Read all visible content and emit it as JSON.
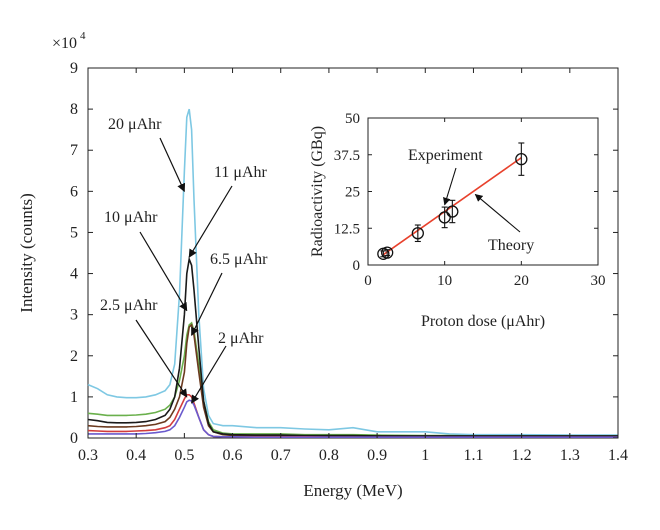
{
  "chart_data": [
    {
      "type": "line",
      "xlabel": "Energy (MeV)",
      "ylabel": "Intensity (counts)",
      "y_multiplier": "×10",
      "y_multiplier_exp": "4",
      "xlim": [
        0.3,
        1.4
      ],
      "ylim": [
        0,
        9
      ],
      "xticks": [
        0.3,
        0.4,
        0.5,
        0.6,
        0.7,
        0.8,
        0.9,
        1,
        1.1,
        1.2,
        1.3,
        1.4
      ],
      "yticks": [
        0,
        1,
        2,
        3,
        4,
        5,
        6,
        7,
        8,
        9
      ],
      "grid": false,
      "series": [
        {
          "color": "#7ec8e3",
          "x": [
            0.3,
            0.32,
            0.34,
            0.36,
            0.38,
            0.4,
            0.42,
            0.44,
            0.46,
            0.47,
            0.48,
            0.49,
            0.5,
            0.505,
            0.51,
            0.515,
            0.52,
            0.53,
            0.54,
            0.55,
            0.56,
            0.58,
            0.6,
            0.65,
            0.7,
            0.75,
            0.8,
            0.85,
            0.9,
            1.0,
            1.05,
            1.1,
            1.2,
            1.3,
            1.4
          ],
          "y": [
            1.3,
            1.2,
            1.05,
            1.0,
            0.98,
            0.98,
            1.0,
            1.05,
            1.15,
            1.3,
            1.8,
            3.5,
            6.5,
            7.8,
            8.0,
            7.5,
            5.8,
            3.0,
            1.2,
            0.55,
            0.35,
            0.3,
            0.3,
            0.25,
            0.25,
            0.22,
            0.2,
            0.25,
            0.15,
            0.15,
            0.1,
            0.08,
            0.08,
            0.07,
            0.07
          ]
        },
        {
          "color": "#6ab04c",
          "x": [
            0.3,
            0.32,
            0.34,
            0.36,
            0.38,
            0.4,
            0.42,
            0.44,
            0.46,
            0.47,
            0.48,
            0.49,
            0.5,
            0.505,
            0.51,
            0.515,
            0.52,
            0.53,
            0.54,
            0.55,
            0.56,
            0.58,
            0.6,
            0.65,
            0.7,
            0.75,
            0.8,
            0.85,
            0.9,
            1.0,
            1.05,
            1.1,
            1.2,
            1.3,
            1.4
          ],
          "y": [
            0.6,
            0.58,
            0.55,
            0.55,
            0.55,
            0.56,
            0.58,
            0.62,
            0.7,
            0.8,
            1.0,
            1.4,
            2.0,
            2.5,
            2.75,
            2.8,
            2.6,
            1.8,
            0.9,
            0.4,
            0.2,
            0.12,
            0.1,
            0.1,
            0.1,
            0.08,
            0.08,
            0.08,
            0.07,
            0.06,
            0.06,
            0.05,
            0.05,
            0.05,
            0.05
          ]
        },
        {
          "color": "#6b3a1f",
          "x": [
            0.3,
            0.32,
            0.34,
            0.36,
            0.38,
            0.4,
            0.42,
            0.44,
            0.46,
            0.47,
            0.48,
            0.49,
            0.5,
            0.505,
            0.51,
            0.515,
            0.52,
            0.53,
            0.54,
            0.55,
            0.56,
            0.58,
            0.6,
            0.65,
            0.7,
            0.75,
            0.8,
            0.85,
            0.9,
            1.0,
            1.05,
            1.1,
            1.2,
            1.3,
            1.4
          ],
          "y": [
            0.3,
            0.28,
            0.27,
            0.27,
            0.27,
            0.28,
            0.3,
            0.33,
            0.4,
            0.5,
            0.7,
            1.0,
            1.6,
            2.3,
            2.7,
            2.75,
            2.5,
            1.6,
            0.75,
            0.3,
            0.15,
            0.08,
            0.06,
            0.06,
            0.06,
            0.05,
            0.05,
            0.05,
            0.05,
            0.04,
            0.04,
            0.04,
            0.04,
            0.04,
            0.04
          ]
        },
        {
          "color": "#1a1a1a",
          "x": [
            0.3,
            0.32,
            0.34,
            0.36,
            0.38,
            0.4,
            0.42,
            0.44,
            0.46,
            0.47,
            0.48,
            0.49,
            0.5,
            0.505,
            0.51,
            0.515,
            0.52,
            0.53,
            0.54,
            0.55,
            0.56,
            0.58,
            0.6,
            0.65,
            0.7,
            0.75,
            0.8,
            0.85,
            0.9,
            1.0,
            1.05,
            1.1,
            1.2,
            1.3,
            1.4
          ],
          "y": [
            0.45,
            0.42,
            0.38,
            0.37,
            0.37,
            0.38,
            0.4,
            0.45,
            0.55,
            0.7,
            1.0,
            1.7,
            3.0,
            4.0,
            4.35,
            4.2,
            3.6,
            2.2,
            0.9,
            0.35,
            0.15,
            0.1,
            0.08,
            0.07,
            0.07,
            0.06,
            0.06,
            0.06,
            0.05,
            0.05,
            0.05,
            0.05,
            0.05,
            0.05,
            0.05
          ]
        },
        {
          "color": "#d23c3c",
          "x": [
            0.3,
            0.32,
            0.34,
            0.36,
            0.38,
            0.4,
            0.42,
            0.44,
            0.46,
            0.47,
            0.48,
            0.49,
            0.5,
            0.505,
            0.51,
            0.515,
            0.52,
            0.53,
            0.54,
            0.55,
            0.56,
            0.58,
            0.6,
            0.65,
            0.7,
            0.75,
            0.8,
            0.85,
            0.9,
            1.0,
            1.05,
            1.1,
            1.2,
            1.3,
            1.4
          ],
          "y": [
            0.18,
            0.17,
            0.16,
            0.16,
            0.16,
            0.17,
            0.18,
            0.2,
            0.25,
            0.3,
            0.45,
            0.7,
            0.95,
            1.05,
            1.05,
            1.0,
            0.85,
            0.5,
            0.2,
            0.08,
            0.04,
            0.03,
            0.03,
            0.03,
            0.03,
            0.03,
            0.02,
            0.02,
            0.02,
            0.02,
            0.02,
            0.02,
            0.02,
            0.02,
            0.02
          ]
        },
        {
          "color": "#6a5acd",
          "x": [
            0.3,
            0.32,
            0.34,
            0.36,
            0.38,
            0.4,
            0.42,
            0.44,
            0.46,
            0.47,
            0.48,
            0.49,
            0.5,
            0.505,
            0.51,
            0.515,
            0.52,
            0.53,
            0.54,
            0.55,
            0.56,
            0.58,
            0.6,
            0.65,
            0.7,
            0.75,
            0.8,
            0.85,
            0.9,
            1.0,
            1.05,
            1.1,
            1.2,
            1.3,
            1.4
          ],
          "y": [
            0.1,
            0.1,
            0.1,
            0.1,
            0.1,
            0.1,
            0.11,
            0.13,
            0.16,
            0.2,
            0.3,
            0.5,
            0.75,
            0.88,
            0.92,
            0.9,
            0.8,
            0.5,
            0.2,
            0.08,
            0.04,
            0.03,
            0.03,
            0.02,
            0.02,
            0.02,
            0.02,
            0.02,
            0.02,
            0.02,
            0.02,
            0.02,
            0.02,
            0.02,
            0.02
          ]
        }
      ],
      "annotations": [
        {
          "text": "20 μAhr",
          "points_to": [
            0.5,
            6.0
          ]
        },
        {
          "text": "11 μAhr",
          "points_to": [
            0.51,
            4.4
          ]
        },
        {
          "text": "10 μAhr",
          "points_to": [
            0.505,
            3.1
          ]
        },
        {
          "text": "6.5 μAhr",
          "points_to": [
            0.515,
            2.5
          ]
        },
        {
          "text": "2.5 μAhr",
          "points_to": [
            0.505,
            1.0
          ]
        },
        {
          "text": "2 μAhr",
          "points_to": [
            0.515,
            0.85
          ]
        }
      ]
    },
    {
      "type": "scatter",
      "xlabel": "Proton dose (μAhr)",
      "ylabel": "Radioactivity (GBq)",
      "xlim": [
        0,
        30
      ],
      "ylim": [
        0,
        50
      ],
      "xticks": [
        0,
        10,
        20,
        30
      ],
      "yticks": [
        0,
        12.5,
        25,
        37.5,
        50
      ],
      "ytick_labels": [
        "0",
        "12.5",
        "25",
        "37.5",
        "50"
      ],
      "grid": false,
      "experiment": {
        "name": "Experiment",
        "x": [
          2,
          2.5,
          6.5,
          10,
          11,
          20
        ],
        "y": [
          3.8,
          4.2,
          10.8,
          16.2,
          18.2,
          36.0
        ],
        "err": [
          1.0,
          1.0,
          2.8,
          3.5,
          3.8,
          5.5
        ]
      },
      "theory": {
        "name": "Theory",
        "color": "#e8412c",
        "x": [
          2,
          20
        ],
        "y": [
          3.5,
          36.5
        ]
      },
      "annotations": [
        {
          "text": "Experiment",
          "points_to": [
            10,
            20.5
          ]
        },
        {
          "text": "Theory",
          "points_to": [
            14,
            24
          ]
        }
      ]
    }
  ]
}
